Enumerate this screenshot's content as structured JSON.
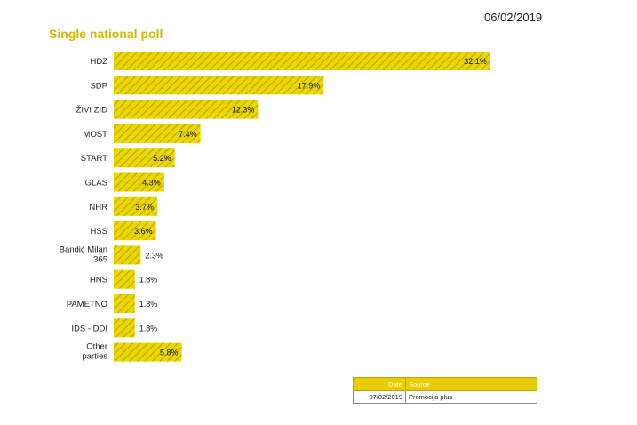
{
  "header": {
    "date": "06/02/2019"
  },
  "colors": {
    "bar_fill": "#ecd800",
    "bar_hatch": "#b9a600",
    "title": "#d4b800",
    "table_header": "#e8cc00"
  },
  "chart_data": {
    "type": "bar",
    "orientation": "horizontal",
    "title": "Single national poll",
    "categories": [
      "HDZ",
      "SDP",
      "ŽIVI ZID",
      "MOST",
      "START",
      "GLAS",
      "NHR",
      "HSS",
      "Bandić Milan 365",
      "HNS",
      "PAMETNO",
      "IDS - DDI",
      "Other parties"
    ],
    "values": [
      32.1,
      17.9,
      12.3,
      7.4,
      5.2,
      4.3,
      3.7,
      3.6,
      2.3,
      1.8,
      1.8,
      1.8,
      5.8
    ],
    "value_labels": [
      "32.1%",
      "17.9%",
      "12.3%",
      "7.4%",
      "5.2%",
      "4.3%",
      "3.7%",
      "3.6%",
      "2.3%",
      "1.8%",
      "1.8%",
      "1.8%",
      "5.8%"
    ],
    "xlabel": "",
    "ylabel": "",
    "grid": false,
    "legend": "none"
  },
  "source_table": {
    "headers": [
      "Date",
      "Source"
    ],
    "rows": [
      [
        "07/02/2019",
        "Promocija plus"
      ]
    ]
  }
}
